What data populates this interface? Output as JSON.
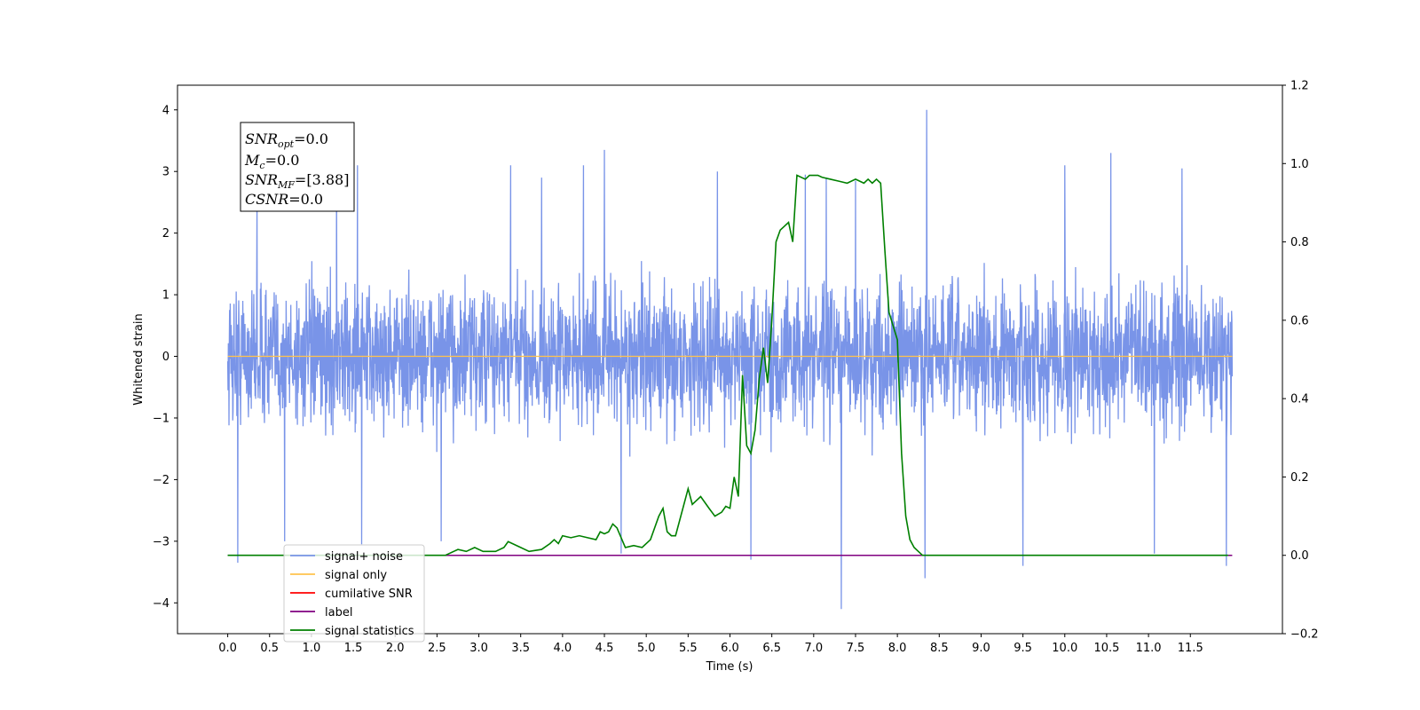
{
  "chart_data": {
    "type": "line",
    "xlabel": "Time (s)",
    "ylabel": "Whitened strain",
    "x_range": [
      -0.6,
      12.6
    ],
    "y_range": [
      -4.5,
      4.4
    ],
    "y2_range": [
      -0.2,
      1.2
    ],
    "x_ticks": [
      0.0,
      0.5,
      1.0,
      1.5,
      2.0,
      2.5,
      3.0,
      3.5,
      4.0,
      4.5,
      5.0,
      5.5,
      6.0,
      6.5,
      7.0,
      7.5,
      8.0,
      8.5,
      9.0,
      9.5,
      10.0,
      10.5,
      11.0,
      11.5
    ],
    "x_tick_labels": [
      "0.0",
      "0.5",
      "1.0",
      "1.5",
      "2.0",
      "2.5",
      "3.0",
      "3.5",
      "4.0",
      "4.5",
      "5.0",
      "5.5",
      "6.0",
      "6.5",
      "7.0",
      "7.5",
      "8.0",
      "8.5",
      "9.0",
      "9.5",
      "10.0",
      "10.5",
      "11.0",
      "11.5"
    ],
    "y_ticks": [
      4,
      3,
      2,
      1,
      0,
      -1,
      -2,
      -3,
      -4
    ],
    "y_tick_labels": [
      "4",
      "3",
      "2",
      "1",
      "0",
      "−1",
      "−2",
      "−3",
      "−4"
    ],
    "y2_ticks": [
      1.2,
      1.0,
      0.8,
      0.6,
      0.4,
      0.2,
      0.0,
      -0.2
    ],
    "y2_tick_labels": [
      "1.2",
      "1.0",
      "0.8",
      "0.6",
      "0.4",
      "0.2",
      "0.0",
      "−0.2"
    ],
    "grid": false,
    "legend_position": "lower-left",
    "legend": [
      {
        "label": "signal+ noise",
        "color": "#7994e8"
      },
      {
        "label": "signal only",
        "color": "#ffc34d"
      },
      {
        "label": "cumilative SNR",
        "color": "#ff0000"
      },
      {
        "label": "label",
        "color": "#800080"
      },
      {
        "label": "signal statistics",
        "color": "#008000"
      }
    ],
    "annotation": {
      "snr_opt": {
        "name": "SNR",
        "sub": "opt",
        "value": "=0.0"
      },
      "mc": {
        "name": "M",
        "sub": "c",
        "value": "=0.0"
      },
      "snr_mf": {
        "name": "SNR",
        "sub": "MF",
        "value": "=[3.88]"
      },
      "csnr": {
        "name": "CSNR",
        "sub": "",
        "value": "=0.0"
      }
    },
    "series": [
      {
        "name": "signal+ noise",
        "axis": "left",
        "color": "#7994e8",
        "kind": "noise",
        "x_range": [
          0.0,
          12.0
        ],
        "band": [
          -1.9,
          1.9
        ],
        "spikes": [
          [
            0.12,
            -3.35
          ],
          [
            0.35,
            2.6
          ],
          [
            0.68,
            -3.0
          ],
          [
            1.3,
            3.1
          ],
          [
            1.55,
            3.1
          ],
          [
            1.6,
            -3.05
          ],
          [
            3.75,
            2.9
          ],
          [
            4.25,
            3.1
          ],
          [
            4.5,
            3.35
          ],
          [
            4.7,
            -3.2
          ],
          [
            5.85,
            3.0
          ],
          [
            6.25,
            -3.3
          ],
          [
            6.9,
            2.95
          ],
          [
            7.15,
            2.9
          ],
          [
            7.33,
            -4.1
          ],
          [
            7.5,
            2.85
          ],
          [
            8.35,
            4.0
          ],
          [
            8.33,
            -3.6
          ],
          [
            9.5,
            -3.4
          ],
          [
            10.0,
            3.1
          ],
          [
            10.55,
            3.3
          ],
          [
            11.4,
            3.05
          ],
          [
            11.93,
            -3.4
          ],
          [
            11.07,
            -3.2
          ],
          [
            3.38,
            3.1
          ],
          [
            2.55,
            -3.0
          ]
        ]
      },
      {
        "name": "signal only",
        "axis": "left",
        "color": "#ffc34d",
        "x": [
          0.0,
          12.0
        ],
        "y": [
          0.0,
          0.0
        ]
      },
      {
        "name": "label",
        "axis": "right",
        "color": "#800080",
        "x": [
          0.0,
          12.0
        ],
        "y": [
          0.0,
          0.0
        ]
      },
      {
        "name": "signal statistics",
        "axis": "right",
        "color": "#008000",
        "x": [
          0.0,
          2.6,
          2.7,
          2.75,
          2.85,
          2.95,
          3.05,
          3.2,
          3.3,
          3.35,
          3.5,
          3.6,
          3.75,
          3.85,
          3.9,
          3.95,
          4.0,
          4.1,
          4.2,
          4.3,
          4.4,
          4.45,
          4.5,
          4.55,
          4.6,
          4.65,
          4.75,
          4.85,
          4.95,
          5.05,
          5.15,
          5.2,
          5.25,
          5.3,
          5.35,
          5.4,
          5.5,
          5.55,
          5.6,
          5.65,
          5.75,
          5.82,
          5.9,
          5.95,
          6.0,
          6.05,
          6.1,
          6.15,
          6.2,
          6.25,
          6.3,
          6.35,
          6.4,
          6.45,
          6.5,
          6.55,
          6.6,
          6.65,
          6.7,
          6.75,
          6.8,
          6.9,
          6.95,
          7.0,
          7.05,
          7.1,
          7.2,
          7.3,
          7.4,
          7.5,
          7.6,
          7.65,
          7.7,
          7.75,
          7.8,
          7.85,
          7.9,
          8.0,
          8.05,
          8.1,
          8.15,
          8.2,
          8.25,
          8.3,
          8.4,
          9.0,
          10.0,
          11.0,
          11.95
        ],
        "y": [
          0.0,
          0.0,
          0.01,
          0.015,
          0.01,
          0.02,
          0.01,
          0.01,
          0.02,
          0.035,
          0.02,
          0.01,
          0.015,
          0.03,
          0.04,
          0.03,
          0.05,
          0.045,
          0.05,
          0.045,
          0.04,
          0.06,
          0.055,
          0.06,
          0.08,
          0.07,
          0.02,
          0.025,
          0.02,
          0.04,
          0.1,
          0.12,
          0.06,
          0.05,
          0.05,
          0.09,
          0.17,
          0.13,
          0.14,
          0.15,
          0.12,
          0.1,
          0.11,
          0.125,
          0.12,
          0.2,
          0.15,
          0.46,
          0.28,
          0.26,
          0.32,
          0.45,
          0.53,
          0.44,
          0.6,
          0.8,
          0.83,
          0.84,
          0.85,
          0.8,
          0.97,
          0.96,
          0.97,
          0.97,
          0.97,
          0.965,
          0.96,
          0.955,
          0.95,
          0.96,
          0.95,
          0.96,
          0.95,
          0.96,
          0.95,
          0.78,
          0.62,
          0.55,
          0.26,
          0.1,
          0.04,
          0.02,
          0.01,
          0.0,
          0.0,
          0.0,
          0.0,
          0.0,
          0.0
        ]
      }
    ]
  }
}
